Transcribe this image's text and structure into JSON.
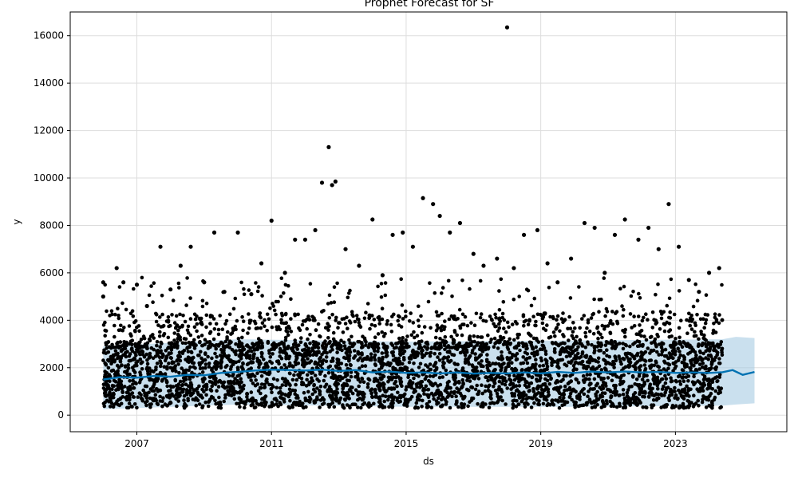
{
  "chart_data": {
    "type": "scatter",
    "title": "Prophet Forecast for SF",
    "xlabel": "ds",
    "ylabel": "y",
    "xlim": [
      2005.02,
      2026.31
    ],
    "ylim": [
      -700,
      17000
    ],
    "xticks": [
      2007,
      2011,
      2015,
      2019,
      2023
    ],
    "yticks": [
      0,
      2000,
      4000,
      6000,
      8000,
      10000,
      12000,
      14000,
      16000
    ],
    "grid": true,
    "history_range": [
      2006.0,
      2024.4
    ],
    "forecast_end": 2025.35,
    "colors": {
      "points": "#000000",
      "forecast_line": "#0072B2",
      "uncertainty_band": "#A6CCE3",
      "grid": "#dddddd",
      "axes": "#000000"
    },
    "series": [
      {
        "name": "",
        "kind": "observed_points",
        "description_points": [
          [
            2006.0,
            5600
          ],
          [
            2006.0,
            5000
          ],
          [
            2006.4,
            6200
          ],
          [
            2006.6,
            5600
          ],
          [
            2007.0,
            5500
          ],
          [
            2007.3,
            4600
          ],
          [
            2007.7,
            7100
          ],
          [
            2008.0,
            5300
          ],
          [
            2008.3,
            6300
          ],
          [
            2008.6,
            7100
          ],
          [
            2009.0,
            5600
          ],
          [
            2009.3,
            7700
          ],
          [
            2009.6,
            5200
          ],
          [
            2010.0,
            7700
          ],
          [
            2010.4,
            5100
          ],
          [
            2010.7,
            6400
          ],
          [
            2011.0,
            8200
          ],
          [
            2011.4,
            6000
          ],
          [
            2011.7,
            7400
          ],
          [
            2012.0,
            7400
          ],
          [
            2012.3,
            7800
          ],
          [
            2012.5,
            9800
          ],
          [
            2012.7,
            11300
          ],
          [
            2012.8,
            9700
          ],
          [
            2012.9,
            9850
          ],
          [
            2013.2,
            7000
          ],
          [
            2013.6,
            6300
          ],
          [
            2014.0,
            8250
          ],
          [
            2014.3,
            5900
          ],
          [
            2014.6,
            7600
          ],
          [
            2014.9,
            7700
          ],
          [
            2015.2,
            7100
          ],
          [
            2015.5,
            9150
          ],
          [
            2015.8,
            8900
          ],
          [
            2016.0,
            8400
          ],
          [
            2016.3,
            7700
          ],
          [
            2016.6,
            8100
          ],
          [
            2017.0,
            6800
          ],
          [
            2017.3,
            6300
          ],
          [
            2017.7,
            6600
          ],
          [
            2018.0,
            16350
          ],
          [
            2018.2,
            6200
          ],
          [
            2018.5,
            7600
          ],
          [
            2018.9,
            7800
          ],
          [
            2019.2,
            6400
          ],
          [
            2019.5,
            5600
          ],
          [
            2019.9,
            6600
          ],
          [
            2020.3,
            8100
          ],
          [
            2020.6,
            7900
          ],
          [
            2020.9,
            6000
          ],
          [
            2021.2,
            7600
          ],
          [
            2021.5,
            8250
          ],
          [
            2021.9,
            7400
          ],
          [
            2022.2,
            7900
          ],
          [
            2022.5,
            7000
          ],
          [
            2022.8,
            8900
          ],
          [
            2023.1,
            7100
          ],
          [
            2023.4,
            5700
          ],
          [
            2023.7,
            5200
          ],
          [
            2024.0,
            6000
          ],
          [
            2024.3,
            6200
          ]
        ]
      },
      {
        "name": "",
        "kind": "forecast_yhat",
        "x": [
          2006.0,
          2006.5,
          2007.0,
          2007.5,
          2008.0,
          2008.5,
          2009.0,
          2009.5,
          2010.0,
          2010.5,
          2011.0,
          2011.5,
          2012.0,
          2012.5,
          2013.0,
          2013.5,
          2014.0,
          2014.5,
          2015.0,
          2015.5,
          2016.0,
          2016.5,
          2017.0,
          2017.5,
          2018.0,
          2018.5,
          2019.0,
          2019.5,
          2020.0,
          2020.5,
          2021.0,
          2021.5,
          2022.0,
          2022.5,
          2023.0,
          2023.5,
          2024.0,
          2024.4,
          2024.7,
          2025.0,
          2025.35
        ],
        "y": [
          1500,
          1600,
          1580,
          1650,
          1620,
          1700,
          1680,
          1780,
          1820,
          1880,
          1920,
          1900,
          1880,
          1920,
          1860,
          1900,
          1800,
          1840,
          1780,
          1800,
          1760,
          1800,
          1750,
          1780,
          1760,
          1800,
          1760,
          1820,
          1780,
          1840,
          1800,
          1840,
          1800,
          1820,
          1780,
          1800,
          1780,
          1810,
          1900,
          1700,
          1820
        ]
      },
      {
        "name": "",
        "kind": "uncertainty_interval",
        "x": [
          2006.0,
          2010.0,
          2015.0,
          2020.0,
          2024.4,
          2024.8,
          2025.35
        ],
        "lower": [
          250,
          450,
          350,
          350,
          400,
          450,
          500
        ],
        "upper": [
          2900,
          3200,
          3100,
          3150,
          3200,
          3300,
          3250
        ]
      }
    ]
  }
}
